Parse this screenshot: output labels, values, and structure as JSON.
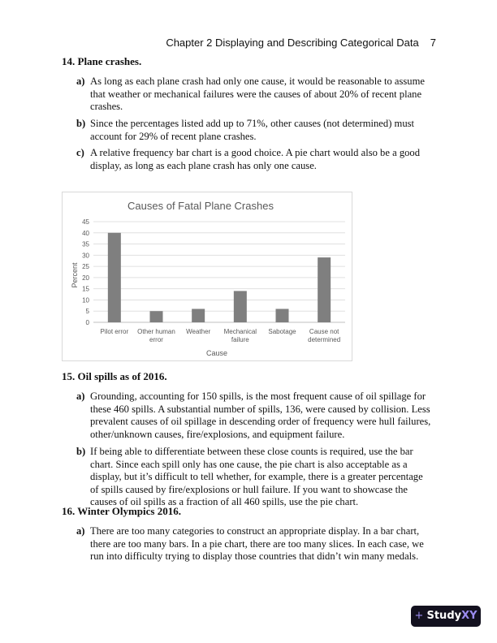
{
  "header": {
    "chapter": "Chapter 2  Displaying and Describing Categorical Data",
    "page": "7"
  },
  "q14": {
    "title": "14. Plane crashes.",
    "items": [
      {
        "label": "a)",
        "text": "As long as each plane crash had only one cause, it would be reasonable to assume that weather or mechanical failures were the causes of about 20% of recent plane crashes."
      },
      {
        "label": "b)",
        "text": "Since the percentages listed add up to 71%, other causes (not determined) must account for 29% of recent plane crashes."
      },
      {
        "label": "c)",
        "text": "A relative frequency bar chart is a good choice.  A pie chart would also be a good display, as long as each plane crash has only one cause."
      }
    ]
  },
  "chart_data": {
    "type": "bar",
    "title": "Causes of Fatal Plane Crashes",
    "xlabel": "Cause",
    "ylabel": "Percent",
    "ylim": [
      0,
      45
    ],
    "yticks": [
      0,
      5,
      10,
      15,
      20,
      25,
      30,
      35,
      40,
      45
    ],
    "grid": true,
    "categories": [
      "Pilot error",
      "Other human error",
      "Weather",
      "Mechanical failure",
      "Sabotage",
      "Cause not determined"
    ],
    "category_lines": [
      [
        "Pilot error"
      ],
      [
        "Other human",
        "error"
      ],
      [
        "Weather"
      ],
      [
        "Mechanical",
        "failure"
      ],
      [
        "Sabotage"
      ],
      [
        "Cause not",
        "determined"
      ]
    ],
    "values": [
      40,
      5,
      6,
      14,
      6,
      29
    ],
    "bar_color": "#7f7f7f"
  },
  "q15": {
    "title": "15.  Oil spills as of 2016.",
    "items": [
      {
        "label": "a)",
        "text": "Grounding, accounting for 150 spills, is the most frequent cause of oil spillage for these 460 spills. A substantial number of spills, 136, were caused by collision. Less prevalent causes of oil spillage in descending order of frequency were hull failures, other/unknown causes, fire/explosions, and equipment failure."
      },
      {
        "label": "b)",
        "text": "If being able to differentiate between these close counts is required, use the bar chart.  Since each spill only has one cause, the pie chart is also acceptable as a display, but it’s difficult to tell whether, for example, there is a greater percentage of spills caused by fire/explosions or hull failure.  If you want to showcase the causes of oil spills as a fraction of all 460 spills, use the pie chart."
      }
    ]
  },
  "q16": {
    "title": "16. Winter Olympics 2016.",
    "items": [
      {
        "label": "a)",
        "text": "There are too many categories to construct an appropriate display.  In a bar chart, there are too many bars.  In a pie chart, there are too many slices.  In each case, we run into difficulty trying to display those countries that didn’t win many medals."
      }
    ]
  },
  "logo": {
    "text": "StudyXY"
  }
}
